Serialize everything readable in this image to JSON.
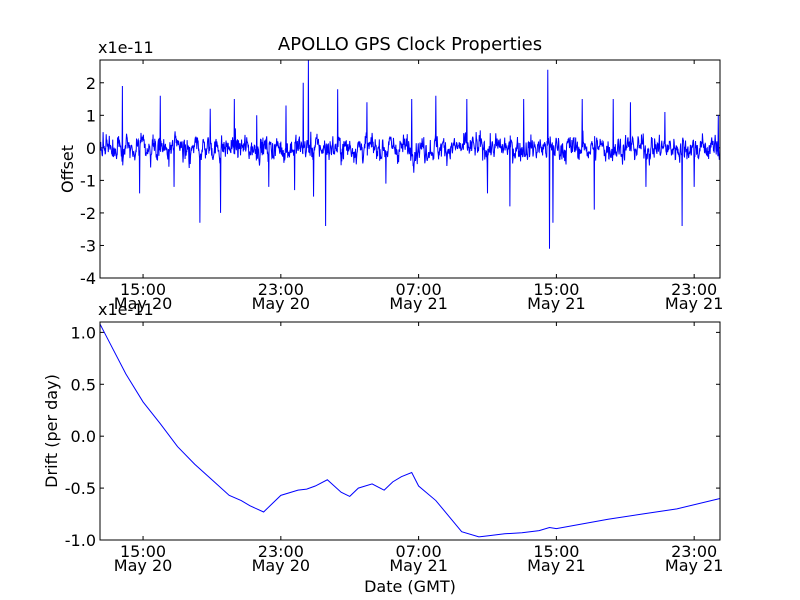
{
  "chart_data": [
    {
      "type": "line",
      "title": "APOLLO GPS Clock Properties",
      "ylabel": "Offset",
      "xlabel": "",
      "scale_label": "x1e-11",
      "ylim": [
        -4,
        2.7
      ],
      "xlim_hours": [
        12.5,
        48.5
      ],
      "yticks": [
        -4,
        -3,
        -2,
        -1,
        0,
        1,
        2
      ],
      "ytick_labels": [
        "-4",
        "-3",
        "-2",
        "-1",
        "0",
        "1",
        "2"
      ],
      "xticks_hours": [
        15,
        23,
        31,
        39,
        47
      ],
      "xtick_labels": [
        {
          "time": "15:00",
          "date": "May 20"
        },
        {
          "time": "23:00",
          "date": "May 20"
        },
        {
          "time": "07:00",
          "date": "May 21"
        },
        {
          "time": "15:00",
          "date": "May 21"
        },
        {
          "time": "23:00",
          "date": "May 21"
        }
      ],
      "series": [
        {
          "name": "offset",
          "color": "#0000ff",
          "noise_sigma": 0.4,
          "spikes": [
            {
              "x": 13.8,
              "y": 1.9
            },
            {
              "x": 14.8,
              "y": -1.4
            },
            {
              "x": 16.0,
              "y": 1.6
            },
            {
              "x": 16.8,
              "y": -1.2
            },
            {
              "x": 18.3,
              "y": -2.3
            },
            {
              "x": 18.9,
              "y": 1.2
            },
            {
              "x": 19.5,
              "y": -2.0
            },
            {
              "x": 20.3,
              "y": 1.5
            },
            {
              "x": 21.6,
              "y": 1.0
            },
            {
              "x": 22.3,
              "y": -1.2
            },
            {
              "x": 23.3,
              "y": 1.3
            },
            {
              "x": 23.8,
              "y": -1.3
            },
            {
              "x": 24.3,
              "y": 2.0
            },
            {
              "x": 24.6,
              "y": 2.7
            },
            {
              "x": 24.9,
              "y": -1.5
            },
            {
              "x": 25.6,
              "y": -2.4
            },
            {
              "x": 26.3,
              "y": 1.8
            },
            {
              "x": 28.0,
              "y": 1.4
            },
            {
              "x": 29.1,
              "y": -1.1
            },
            {
              "x": 30.6,
              "y": 1.5
            },
            {
              "x": 32.0,
              "y": 1.6
            },
            {
              "x": 33.8,
              "y": 1.5
            },
            {
              "x": 35.0,
              "y": -1.4
            },
            {
              "x": 36.3,
              "y": -1.8
            },
            {
              "x": 37.1,
              "y": 1.5
            },
            {
              "x": 38.5,
              "y": 2.4
            },
            {
              "x": 38.6,
              "y": -3.1
            },
            {
              "x": 38.8,
              "y": -2.3
            },
            {
              "x": 40.5,
              "y": 1.5
            },
            {
              "x": 41.2,
              "y": -1.9
            },
            {
              "x": 42.3,
              "y": 1.5
            },
            {
              "x": 43.3,
              "y": 1.4
            },
            {
              "x": 44.2,
              "y": -1.2
            },
            {
              "x": 45.3,
              "y": 1.1
            },
            {
              "x": 46.3,
              "y": -2.4
            },
            {
              "x": 47.0,
              "y": -1.2
            },
            {
              "x": 48.4,
              "y": 1.0
            }
          ]
        }
      ]
    },
    {
      "type": "line",
      "title": "",
      "ylabel": "Drift (per day)",
      "xlabel": "Date (GMT)",
      "scale_label": "x1e-11",
      "ylim": [
        -1.0,
        1.1
      ],
      "xlim_hours": [
        12.5,
        48.5
      ],
      "yticks": [
        -1.0,
        -0.5,
        0.0,
        0.5,
        1.0
      ],
      "ytick_labels": [
        "-1.0",
        "-0.5",
        "0.0",
        "0.5",
        "1.0"
      ],
      "xticks_hours": [
        15,
        23,
        31,
        39,
        47
      ],
      "xtick_labels": [
        {
          "time": "15:00",
          "date": "May 20"
        },
        {
          "time": "23:00",
          "date": "May 20"
        },
        {
          "time": "07:00",
          "date": "May 21"
        },
        {
          "time": "15:00",
          "date": "May 21"
        },
        {
          "time": "23:00",
          "date": "May 21"
        }
      ],
      "series": [
        {
          "name": "drift",
          "color": "#0000ff",
          "x": [
            12.5,
            13.0,
            14.0,
            15.0,
            16.0,
            17.0,
            18.0,
            19.0,
            20.0,
            20.7,
            21.2,
            22.0,
            23.0,
            24.0,
            24.5,
            25.0,
            25.7,
            26.5,
            27.0,
            27.5,
            28.3,
            29.0,
            29.5,
            30.0,
            30.6,
            31.0,
            32.0,
            33.0,
            33.5,
            34.5,
            35.0,
            36.0,
            37.0,
            38.0,
            38.6,
            39.0,
            40.0,
            42.0,
            44.0,
            46.0,
            48.5
          ],
          "y": [
            1.08,
            0.92,
            0.6,
            0.33,
            0.12,
            -0.1,
            -0.27,
            -0.42,
            -0.57,
            -0.62,
            -0.67,
            -0.73,
            -0.57,
            -0.52,
            -0.51,
            -0.48,
            -0.42,
            -0.54,
            -0.58,
            -0.5,
            -0.46,
            -0.52,
            -0.44,
            -0.39,
            -0.35,
            -0.48,
            -0.62,
            -0.82,
            -0.92,
            -0.97,
            -0.96,
            -0.94,
            -0.93,
            -0.91,
            -0.88,
            -0.89,
            -0.86,
            -0.8,
            -0.75,
            -0.7,
            -0.6
          ]
        }
      ]
    }
  ]
}
